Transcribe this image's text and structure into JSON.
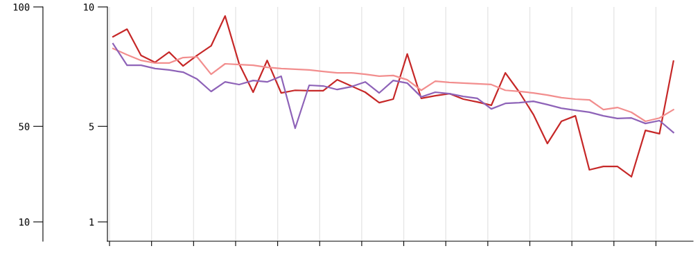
{
  "chart_data": {
    "type": "line",
    "categories": [
      null,
      null,
      null,
      null,
      null,
      null,
      null,
      null,
      null,
      null,
      null,
      null,
      null,
      null,
      null,
      null,
      null,
      null,
      null,
      null,
      null,
      null,
      null,
      null,
      null,
      null,
      null,
      null,
      null,
      null,
      null,
      null,
      null,
      null,
      null,
      null,
      null,
      null,
      null,
      null,
      null
    ],
    "series": [
      {
        "color": "#c62828",
        "values": [
          8.75,
          9.07,
          7.97,
          7.68,
          8.11,
          7.53,
          7.97,
          8.37,
          9.62,
          7.62,
          6.43,
          7.76,
          6.4,
          6.51,
          6.49,
          6.49,
          6.95,
          6.69,
          6.43,
          5.99,
          6.14,
          8.03,
          6.17,
          6.28,
          6.37,
          6.14,
          6.02,
          5.88,
          7.24,
          6.43,
          5.5,
          4.28,
          5.21,
          5.44,
          3.18,
          3.32,
          3.32,
          2.89,
          4.83,
          4.69,
          7.73
        ]
      },
      {
        "color": "#f28e8e",
        "values": [
          8.26,
          8.0,
          7.76,
          7.65,
          7.65,
          7.88,
          7.91,
          7.18,
          7.62,
          7.59,
          7.56,
          7.47,
          7.42,
          7.39,
          7.36,
          7.3,
          7.24,
          7.24,
          7.18,
          7.1,
          7.13,
          6.95,
          6.51,
          6.89,
          6.84,
          6.81,
          6.78,
          6.75,
          6.51,
          6.46,
          6.4,
          6.31,
          6.2,
          6.14,
          6.11,
          5.7,
          5.79,
          5.59,
          5.21,
          5.35,
          5.7
        ]
      },
      {
        "color": "#8e63b8",
        "values": [
          8.46,
          7.56,
          7.56,
          7.42,
          7.36,
          7.27,
          6.98,
          6.46,
          6.86,
          6.75,
          6.92,
          6.86,
          7.1,
          4.92,
          6.72,
          6.69,
          6.54,
          6.66,
          6.86,
          6.4,
          6.92,
          6.81,
          6.23,
          6.43,
          6.37,
          6.25,
          6.17,
          5.73,
          5.96,
          5.99,
          6.05,
          5.91,
          5.76,
          5.67,
          5.59,
          5.44,
          5.33,
          5.35,
          5.12,
          5.24,
          4.74
        ]
      }
    ],
    "ylim": [
      0.19,
      10
    ],
    "yticks": [
      1,
      5,
      10
    ],
    "y2lim": [
      1.9,
      100
    ],
    "y2ticks": [
      10,
      50,
      100
    ],
    "tick_labels": "y",
    "grid": "x",
    "marker": "none",
    "line_style": "solid"
  }
}
